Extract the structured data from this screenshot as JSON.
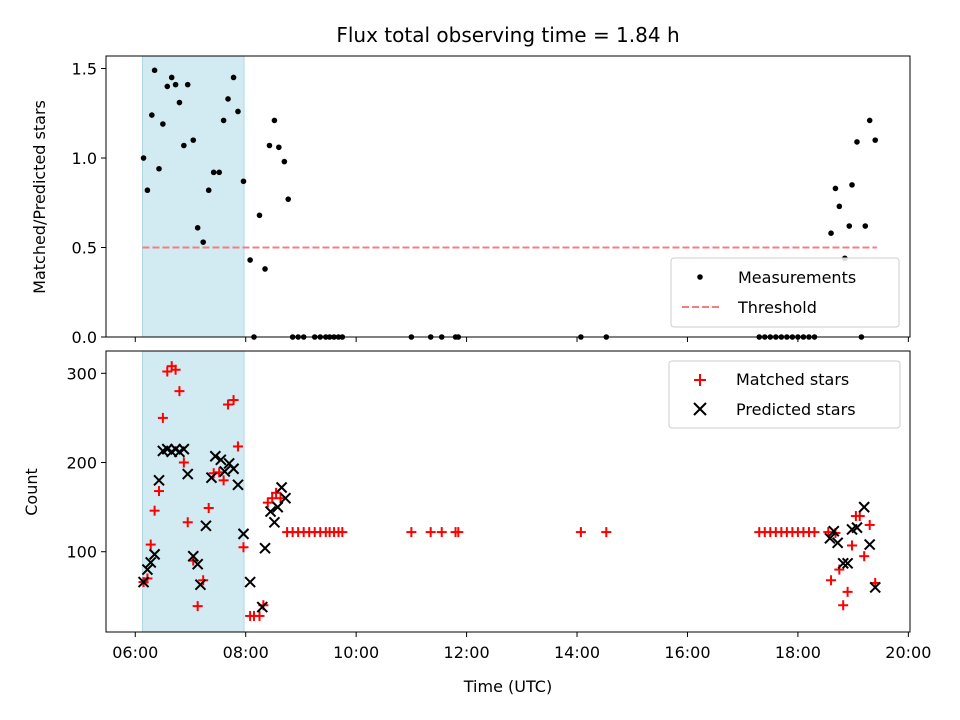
{
  "chart_data": {
    "type": "scatter",
    "title": "Flux total observing time = 1.84 h",
    "xlabel": "Time (UTC)",
    "x_ticks": [
      "06:00",
      "08:00",
      "10:00",
      "12:00",
      "14:00",
      "16:00",
      "18:00",
      "20:00"
    ],
    "x_tick_hours": [
      6,
      8,
      10,
      12,
      14,
      16,
      18,
      20
    ],
    "xlim_hours": [
      5.47,
      20.03
    ],
    "highlight_span_hours": [
      6.13,
      7.97
    ],
    "highlight_color": "#add8e6",
    "panels": [
      {
        "ylabel": "Matched/Predicted stars",
        "ylim": [
          0,
          1.57
        ],
        "y_ticks": [
          0.0,
          0.5,
          1.0,
          1.5
        ],
        "y_tick_labels": [
          "0.0",
          "0.5",
          "1.0",
          "1.5"
        ],
        "legend_position": "lower-right",
        "series": [
          {
            "name": "Measurements",
            "marker": "dot",
            "color": "#000000",
            "points": [
              [
                6.15,
                1.0
              ],
              [
                6.22,
                0.82
              ],
              [
                6.3,
                1.24
              ],
              [
                6.35,
                1.49
              ],
              [
                6.43,
                0.94
              ],
              [
                6.5,
                1.19
              ],
              [
                6.58,
                1.4
              ],
              [
                6.66,
                1.45
              ],
              [
                6.73,
                1.41
              ],
              [
                6.8,
                1.31
              ],
              [
                6.88,
                1.07
              ],
              [
                6.95,
                1.41
              ],
              [
                7.05,
                1.1
              ],
              [
                7.13,
                0.61
              ],
              [
                7.23,
                0.53
              ],
              [
                7.33,
                0.82
              ],
              [
                7.42,
                0.92
              ],
              [
                7.52,
                0.92
              ],
              [
                7.6,
                1.21
              ],
              [
                7.68,
                1.33
              ],
              [
                7.78,
                1.45
              ],
              [
                7.86,
                1.26
              ],
              [
                7.96,
                0.87
              ],
              [
                8.08,
                0.43
              ],
              [
                8.15,
                0.0
              ],
              [
                8.25,
                0.68
              ],
              [
                8.35,
                0.38
              ],
              [
                8.43,
                1.07
              ],
              [
                8.52,
                1.21
              ],
              [
                8.6,
                1.06
              ],
              [
                8.7,
                0.98
              ],
              [
                8.77,
                0.77
              ],
              [
                8.85,
                0.0
              ],
              [
                8.95,
                0.0
              ],
              [
                9.05,
                0.0
              ],
              [
                9.25,
                0.0
              ],
              [
                9.35,
                0.0
              ],
              [
                9.45,
                0.0
              ],
              [
                9.52,
                0.0
              ],
              [
                9.6,
                0.0
              ],
              [
                9.68,
                0.0
              ],
              [
                9.75,
                0.0
              ],
              [
                11.0,
                0.0
              ],
              [
                11.35,
                0.0
              ],
              [
                11.55,
                0.0
              ],
              [
                11.8,
                0.0
              ],
              [
                11.85,
                0.0
              ],
              [
                14.07,
                0.0
              ],
              [
                14.53,
                0.0
              ],
              [
                17.3,
                0.0
              ],
              [
                17.4,
                0.0
              ],
              [
                17.5,
                0.0
              ],
              [
                17.6,
                0.0
              ],
              [
                17.7,
                0.0
              ],
              [
                17.8,
                0.0
              ],
              [
                17.9,
                0.0
              ],
              [
                18.0,
                0.0
              ],
              [
                18.1,
                0.0
              ],
              [
                18.2,
                0.0
              ],
              [
                18.3,
                0.0
              ],
              [
                18.6,
                0.58
              ],
              [
                18.68,
                0.83
              ],
              [
                18.75,
                0.73
              ],
              [
                18.85,
                0.44
              ],
              [
                18.93,
                0.62
              ],
              [
                18.98,
                0.85
              ],
              [
                19.07,
                1.09
              ],
              [
                19.15,
                0.0
              ],
              [
                19.22,
                0.62
              ],
              [
                19.3,
                1.21
              ],
              [
                19.4,
                1.1
              ]
            ]
          },
          {
            "name": "Threshold",
            "marker": "dashed-line",
            "color": "#f08080",
            "points": [
              [
                6.13,
                0.5
              ],
              [
                19.43,
                0.5
              ]
            ]
          }
        ]
      },
      {
        "ylabel": "Count",
        "ylim": [
          10,
          325
        ],
        "y_ticks": [
          100,
          200,
          300
        ],
        "y_tick_labels": [
          "100",
          "200",
          "300"
        ],
        "legend_position": "upper-right",
        "series": [
          {
            "name": "Matched stars",
            "marker": "plus",
            "color": "#ff0000",
            "points": [
              [
                6.15,
                66
              ],
              [
                6.22,
                70
              ],
              [
                6.28,
                108
              ],
              [
                6.35,
                146
              ],
              [
                6.43,
                168
              ],
              [
                6.5,
                250
              ],
              [
                6.58,
                302
              ],
              [
                6.66,
                308
              ],
              [
                6.73,
                304
              ],
              [
                6.8,
                280
              ],
              [
                6.88,
                200
              ],
              [
                6.95,
                133
              ],
              [
                7.05,
                90
              ],
              [
                7.13,
                39
              ],
              [
                7.23,
                68
              ],
              [
                7.33,
                149
              ],
              [
                7.42,
                188
              ],
              [
                7.52,
                189
              ],
              [
                7.6,
                180
              ],
              [
                7.68,
                265
              ],
              [
                7.78,
                270
              ],
              [
                7.86,
                218
              ],
              [
                7.96,
                105
              ],
              [
                8.08,
                28
              ],
              [
                8.15,
                28
              ],
              [
                8.25,
                28
              ],
              [
                8.32,
                40
              ],
              [
                8.4,
                155
              ],
              [
                8.48,
                160
              ],
              [
                8.55,
                166
              ],
              [
                8.63,
                160
              ],
              [
                8.75,
                122
              ],
              [
                8.85,
                122
              ],
              [
                8.95,
                122
              ],
              [
                9.05,
                122
              ],
              [
                9.15,
                122
              ],
              [
                9.25,
                122
              ],
              [
                9.35,
                122
              ],
              [
                9.45,
                122
              ],
              [
                9.52,
                122
              ],
              [
                9.6,
                122
              ],
              [
                9.68,
                122
              ],
              [
                9.75,
                122
              ],
              [
                11.0,
                122
              ],
              [
                11.35,
                122
              ],
              [
                11.55,
                122
              ],
              [
                11.8,
                122
              ],
              [
                11.85,
                122
              ],
              [
                14.07,
                122
              ],
              [
                14.53,
                122
              ],
              [
                17.3,
                122
              ],
              [
                17.4,
                122
              ],
              [
                17.5,
                122
              ],
              [
                17.6,
                122
              ],
              [
                17.7,
                122
              ],
              [
                17.8,
                122
              ],
              [
                17.9,
                122
              ],
              [
                18.0,
                122
              ],
              [
                18.1,
                122
              ],
              [
                18.2,
                122
              ],
              [
                18.3,
                122
              ],
              [
                18.55,
                122
              ],
              [
                18.6,
                68
              ],
              [
                18.68,
                121
              ],
              [
                18.75,
                80
              ],
              [
                18.82,
                40
              ],
              [
                18.9,
                55
              ],
              [
                18.98,
                107
              ],
              [
                19.05,
                140
              ],
              [
                19.12,
                140
              ],
              [
                19.2,
                95
              ],
              [
                19.3,
                130
              ],
              [
                19.4,
                65
              ]
            ]
          },
          {
            "name": "Predicted stars",
            "marker": "cross",
            "color": "#000000",
            "points": [
              [
                6.15,
                66
              ],
              [
                6.22,
                80
              ],
              [
                6.28,
                88
              ],
              [
                6.35,
                97
              ],
              [
                6.43,
                180
              ],
              [
                6.5,
                213
              ],
              [
                6.58,
                215
              ],
              [
                6.66,
                212
              ],
              [
                6.73,
                215
              ],
              [
                6.8,
                212
              ],
              [
                6.88,
                215
              ],
              [
                6.95,
                187
              ],
              [
                7.05,
                95
              ],
              [
                7.13,
                86
              ],
              [
                7.18,
                63
              ],
              [
                7.28,
                129
              ],
              [
                7.38,
                183
              ],
              [
                7.45,
                207
              ],
              [
                7.55,
                203
              ],
              [
                7.62,
                190
              ],
              [
                7.7,
                199
              ],
              [
                7.78,
                193
              ],
              [
                7.86,
                175
              ],
              [
                7.96,
                120
              ],
              [
                8.08,
                66
              ],
              [
                8.3,
                38
              ],
              [
                8.35,
                104
              ],
              [
                8.45,
                145
              ],
              [
                8.52,
                133
              ],
              [
                8.58,
                150
              ],
              [
                8.65,
                172
              ],
              [
                8.72,
                160
              ],
              [
                18.58,
                115
              ],
              [
                18.65,
                123
              ],
              [
                18.72,
                110
              ],
              [
                18.82,
                87
              ],
              [
                18.9,
                87
              ],
              [
                18.98,
                125
              ],
              [
                19.07,
                127
              ],
              [
                19.2,
                150
              ],
              [
                19.3,
                108
              ],
              [
                19.4,
                60
              ]
            ]
          }
        ]
      }
    ]
  }
}
